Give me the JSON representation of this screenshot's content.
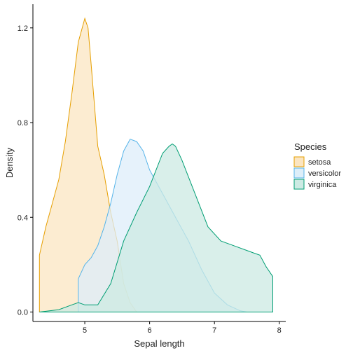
{
  "chart_data": {
    "type": "area",
    "xlabel": "Sepal length",
    "ylabel": "Density",
    "xlim": [
      4.2,
      8.1
    ],
    "ylim": [
      -0.04,
      1.3
    ],
    "x_ticks": [
      5,
      6,
      7,
      8
    ],
    "y_ticks": [
      0.0,
      0.4,
      0.8,
      1.2
    ],
    "y_tick_labels": [
      "0.0",
      "0.4",
      "0.8",
      "1.2"
    ],
    "grid": false,
    "legend": {
      "title": "Species",
      "position": "right"
    },
    "series": [
      {
        "name": "setosa",
        "color": "#E69F00",
        "fill": "#FBE5C1",
        "x": [
          4.3,
          4.4,
          4.5,
          4.6,
          4.7,
          4.8,
          4.9,
          5.0,
          5.05,
          5.1,
          5.2,
          5.3,
          5.4,
          5.5,
          5.6,
          5.7,
          5.8
        ],
        "y": [
          0.24,
          0.36,
          0.46,
          0.56,
          0.72,
          0.92,
          1.14,
          1.24,
          1.2,
          1.04,
          0.7,
          0.58,
          0.42,
          0.3,
          0.12,
          0.04,
          0.0
        ]
      },
      {
        "name": "versicolor",
        "color": "#56B4E9",
        "fill": "#DDEEF9",
        "x": [
          4.9,
          5.0,
          5.1,
          5.2,
          5.3,
          5.4,
          5.5,
          5.6,
          5.7,
          5.8,
          5.9,
          6.0,
          6.2,
          6.4,
          6.6,
          6.8,
          7.0,
          7.2,
          7.4,
          7.5
        ],
        "y": [
          0.14,
          0.2,
          0.23,
          0.28,
          0.36,
          0.46,
          0.58,
          0.68,
          0.73,
          0.72,
          0.68,
          0.6,
          0.5,
          0.4,
          0.3,
          0.18,
          0.08,
          0.03,
          0.005,
          0.0
        ]
      },
      {
        "name": "virginica",
        "color": "#009E73",
        "fill": "#CCEAE3",
        "x": [
          4.3,
          4.6,
          4.8,
          4.9,
          5.0,
          5.2,
          5.4,
          5.6,
          5.8,
          6.0,
          6.1,
          6.2,
          6.3,
          6.35,
          6.4,
          6.5,
          6.7,
          6.9,
          7.1,
          7.3,
          7.5,
          7.6,
          7.7,
          7.8,
          7.9
        ],
        "y": [
          0.0,
          0.01,
          0.03,
          0.04,
          0.03,
          0.03,
          0.12,
          0.3,
          0.42,
          0.53,
          0.6,
          0.67,
          0.7,
          0.71,
          0.7,
          0.64,
          0.5,
          0.36,
          0.3,
          0.28,
          0.26,
          0.25,
          0.24,
          0.19,
          0.15
        ]
      }
    ]
  }
}
